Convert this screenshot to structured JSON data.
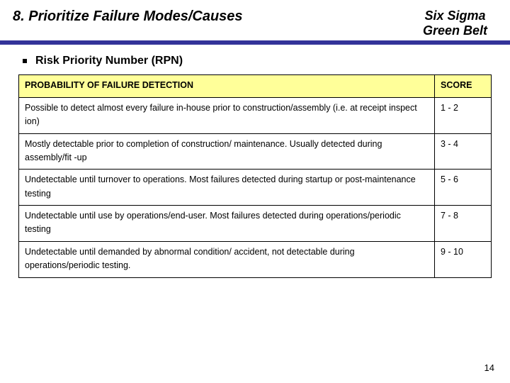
{
  "header": {
    "title": "8. Prioritize Failure Modes/Causes",
    "brand_line1": "Six Sigma",
    "brand_line2": "Green Belt"
  },
  "colors": {
    "rule": "#333399",
    "header_bg": "#ffff99",
    "border": "#000000",
    "background": "#ffffff"
  },
  "bullet": {
    "text": "Risk Priority Number (RPN)"
  },
  "table": {
    "columns": [
      "PROBABILITY OF FAILURE DETECTION",
      "SCORE"
    ],
    "rows": [
      {
        "desc": "Possible to detect almost every failure in-house prior to construction/assembly (i.e. at receipt inspect   ion)",
        "score": "1 - 2"
      },
      {
        "desc": "Mostly detectable prior to completion of construction/ maintenance.  Usually detected during assembly/fit -up",
        "score": "3 - 4"
      },
      {
        "desc": "Undetectable until turnover to operations.  Most failures detected during startup or post-maintenance testing",
        "score": "5 - 6"
      },
      {
        "desc": "Undetectable until use by operations/end-user.  Most failures detected during operations/periodic testing",
        "score": "7 - 8"
      },
      {
        "desc": "Undetectable until demanded by abnormal condition/ accident, not detectable during operations/periodic testing.",
        "score": "9 - 10"
      }
    ]
  },
  "typography": {
    "title_fontsize": 20,
    "brand_fontsize": 18,
    "bullet_fontsize": 16,
    "cell_fontsize": 12.5
  },
  "page_number": "14"
}
